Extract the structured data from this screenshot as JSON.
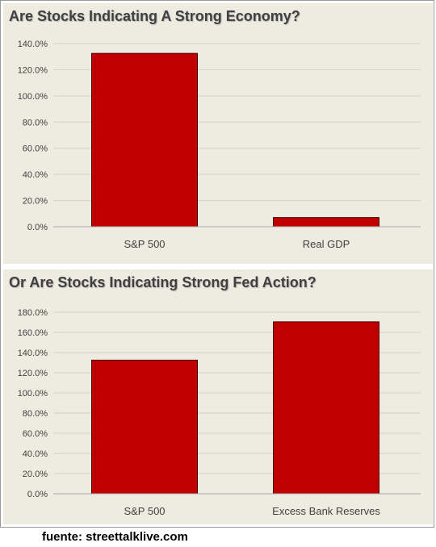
{
  "colors": {
    "bar": "#c00000",
    "panel_background": "#eeece1",
    "grid": "#d4d2c8",
    "text": "#404040"
  },
  "caption": "fuente: streettalklive.com",
  "chart_data": [
    {
      "type": "bar",
      "title": "Are Stocks Indicating A Strong Economy?",
      "categories": [
        "S&P 500",
        "Real GDP"
      ],
      "values": [
        132.5,
        7.0
      ],
      "ylim": [
        0,
        140
      ],
      "ytick_step": 20,
      "ytick_labels": [
        "0.0%",
        "20.0%",
        "40.0%",
        "60.0%",
        "80.0%",
        "100.0%",
        "120.0%",
        "140.0%"
      ],
      "grid": true,
      "legend": "none"
    },
    {
      "type": "bar",
      "title": "Or Are Stocks Indicating Strong Fed Action?",
      "categories": [
        "S&P 500",
        "Excess Bank Reserves"
      ],
      "values": [
        132.5,
        170.5
      ],
      "ylim": [
        0,
        180
      ],
      "ytick_step": 20,
      "ytick_labels": [
        "0.0%",
        "20.0%",
        "40.0%",
        "60.0%",
        "80.0%",
        "100.0%",
        "120.0%",
        "140.0%",
        "160.0%",
        "180.0%"
      ],
      "grid": true,
      "legend": "none"
    }
  ]
}
